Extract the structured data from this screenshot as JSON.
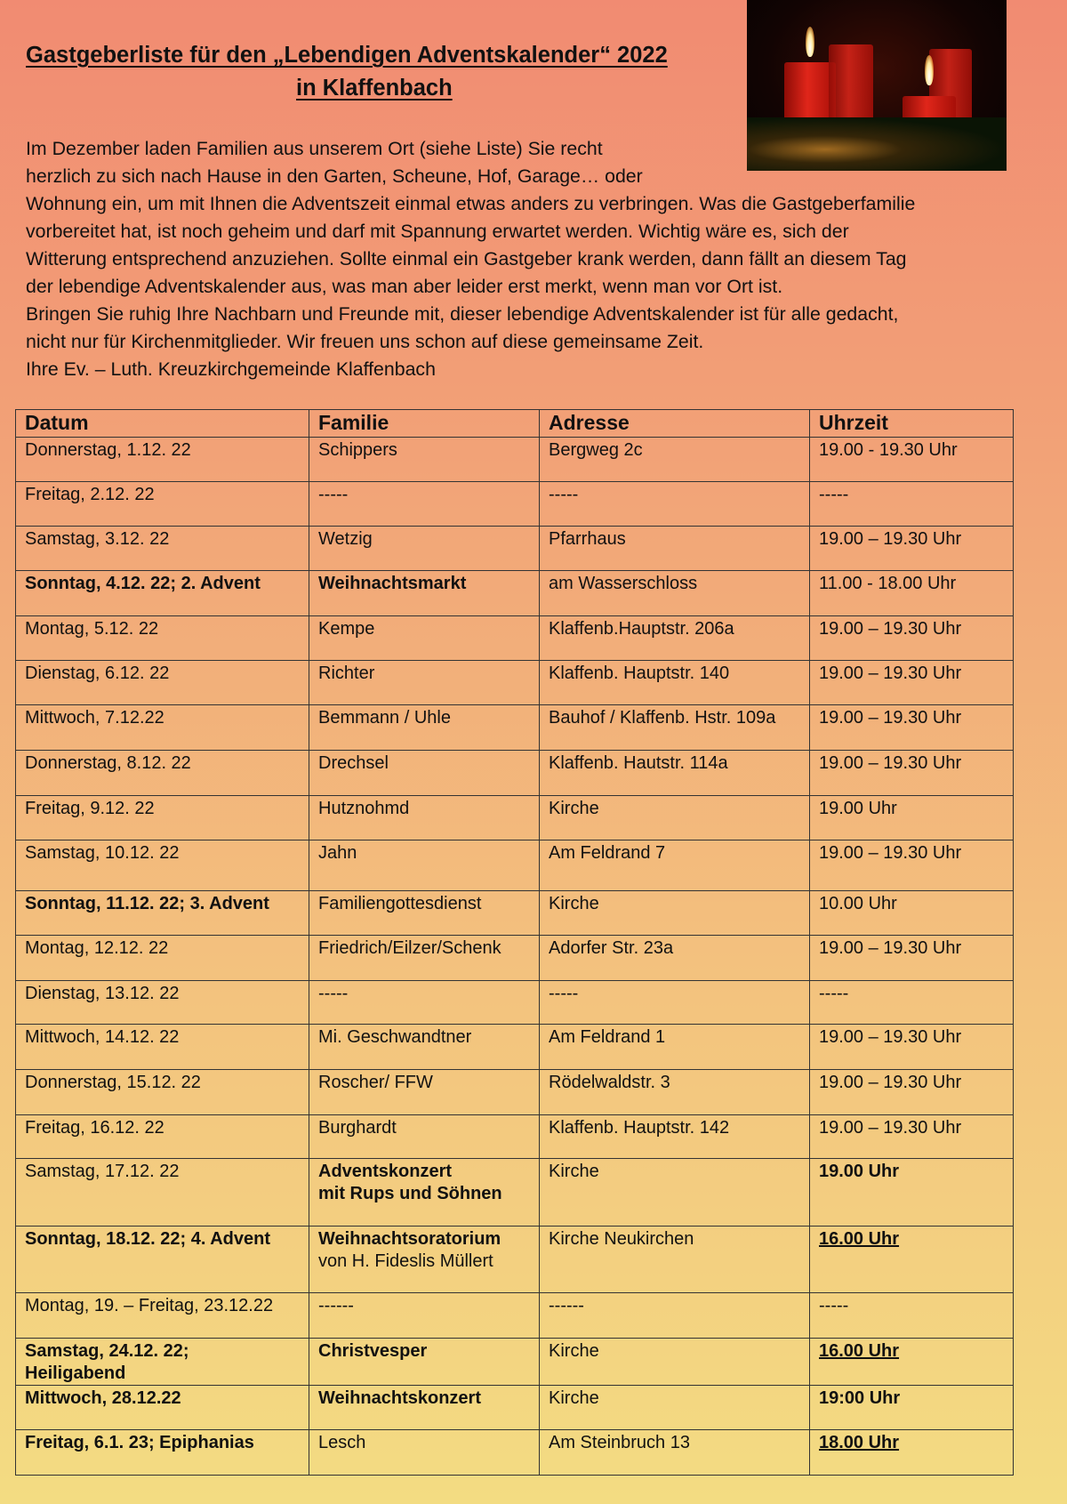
{
  "title": {
    "line1": "Gastgeberliste für den „Lebendigen Adventskalender“ 2022",
    "line2": "in Klaffenbach"
  },
  "intro": [
    "Im Dezember laden Familien aus unserem Ort (siehe Liste) Sie recht",
    "herzlich zu sich nach Hause in den Garten, Scheune, Hof, Garage… oder",
    "Wohnung ein, um mit Ihnen die Adventszeit einmal etwas anders zu verbringen. Was die Gastgeberfamilie",
    "vorbereitet hat, ist noch geheim und darf mit Spannung erwartet werden. Wichtig wäre es, sich der",
    "Witterung entsprechend anzuziehen. Sollte einmal ein Gastgeber krank werden, dann fällt an diesem Tag",
    "der lebendige Adventskalender aus, was man aber leider erst merkt, wenn man vor Ort ist.",
    "Bringen Sie ruhig Ihre Nachbarn und Freunde mit, dieser lebendige Adventskalender ist für alle gedacht,",
    "nicht nur für Kirchenmitglieder. Wir freuen uns schon auf diese gemeinsame Zeit.",
    "Ihre Ev. – Luth. Kreuzkirchgemeinde Klaffenbach"
  ],
  "photo": {
    "icon": "advent-candles-image"
  },
  "table": {
    "headers": [
      "Datum",
      "Familie",
      "Adresse",
      "Uhrzeit"
    ],
    "rows": [
      {
        "date": "Donnerstag, 1.12. 22",
        "family": "Schippers",
        "address": "Bergweg 2c",
        "time": "19.00 - 19.30 Uhr"
      },
      {
        "date": "Freitag, 2.12. 22",
        "family": "-----",
        "address": "-----",
        "time": "-----"
      },
      {
        "date": "Samstag, 3.12. 22",
        "family": "Wetzig",
        "address": "Pfarrhaus",
        "time": "19.00 – 19.30 Uhr"
      },
      {
        "date": "Sonntag, 4.12. 22;  2. Advent",
        "date_bold": true,
        "family": "Weihnachtsmarkt",
        "family_bold": true,
        "address": "am Wasserschloss",
        "time": "11.00 - 18.00 Uhr"
      },
      {
        "date": "Montag, 5.12. 22",
        "family": "Kempe",
        "address": "Klaffenb.Hauptstr. 206a",
        "time": "19.00 – 19.30 Uhr"
      },
      {
        "date": "Dienstag, 6.12. 22",
        "family": "Richter",
        "address": "Klaffenb. Hauptstr. 140",
        "time": "19.00 – 19.30 Uhr"
      },
      {
        "date": "Mittwoch, 7.12.22",
        "family": "Bemmann / Uhle",
        "address": "Bauhof / Klaffenb. Hstr. 109a",
        "time": "19.00 – 19.30 Uhr"
      },
      {
        "date": "Donnerstag, 8.12. 22",
        "family": "Drechsel",
        "address": "Klaffenb. Hautstr. 114a",
        "time": "19.00 – 19.30 Uhr"
      },
      {
        "date": "Freitag, 9.12. 22",
        "family": "Hutznohmd",
        "address": "Kirche",
        "time": "19.00 Uhr"
      },
      {
        "date": "Samstag, 10.12. 22",
        "family": "Jahn",
        "address": "Am Feldrand 7",
        "time": "19.00 – 19.30 Uhr"
      },
      {
        "date": "Sonntag, 11.12. 22;  3. Advent",
        "date_bold": true,
        "family": "Familiengottesdienst",
        "address": "Kirche",
        "time": "10.00 Uhr"
      },
      {
        "date": "Montag, 12.12. 22",
        "family": "Friedrich/Eilzer/Schenk",
        "address": "Adorfer Str. 23a",
        "time": "19.00 – 19.30 Uhr"
      },
      {
        "date": "Dienstag, 13.12. 22",
        "family": "-----",
        "address": "-----",
        "time": "-----"
      },
      {
        "date": "Mittwoch, 14.12. 22",
        "family": "Mi. Geschwandtner",
        "address": "Am Feldrand 1",
        "time": "19.00 – 19.30 Uhr"
      },
      {
        "date": "Donnerstag, 15.12. 22",
        "family": "Roscher/ FFW",
        "address": "Rödelwaldstr. 3",
        "time": "19.00 – 19.30 Uhr"
      },
      {
        "date": "Freitag, 16.12. 22",
        "family": "Burghardt",
        "address": "Klaffenb. Hauptstr. 142",
        "time": "19.00 – 19.30 Uhr"
      },
      {
        "date": "Samstag, 17.12. 22",
        "family": "Adventskonzert",
        "family2": "mit Rups und Söhnen",
        "family_bold": true,
        "family2_bold": true,
        "address": "Kirche",
        "time": "19.00 Uhr",
        "time_bold": true
      },
      {
        "date": "Sonntag, 18.12. 22;  4. Advent",
        "date_bold": true,
        "family": "Weihnachtsoratorium",
        "family_bold": true,
        "family2": "von H. Fideslis Müllert",
        "address": "Kirche Neukirchen",
        "time": "16.00 Uhr",
        "time_bold": true,
        "time_underline": true
      },
      {
        "date": "Montag, 19. – Freitag, 23.12.22",
        "family": "------",
        "address": "------",
        "time": "-----"
      },
      {
        "date": "Samstag, 24.12. 22;",
        "date2": "Heiligabend",
        "date_bold": true,
        "family": "Christvesper",
        "family_bold": true,
        "address": "Kirche",
        "time": "16.00 Uhr",
        "time_bold": true,
        "time_underline": true
      },
      {
        "date": "Mittwoch, 28.12.22",
        "date_bold": true,
        "family": "Weihnachtskonzert",
        "family_bold": true,
        "address": "Kirche",
        "time": "19:00 Uhr",
        "time_bold": true
      },
      {
        "date": "Freitag, 6.1. 23;   Epiphanias",
        "date_bold": true,
        "family": "Lesch",
        "address": "Am Steinbruch 13",
        "time": "18.00 Uhr",
        "time_bold": true,
        "time_underline": true
      }
    ]
  }
}
